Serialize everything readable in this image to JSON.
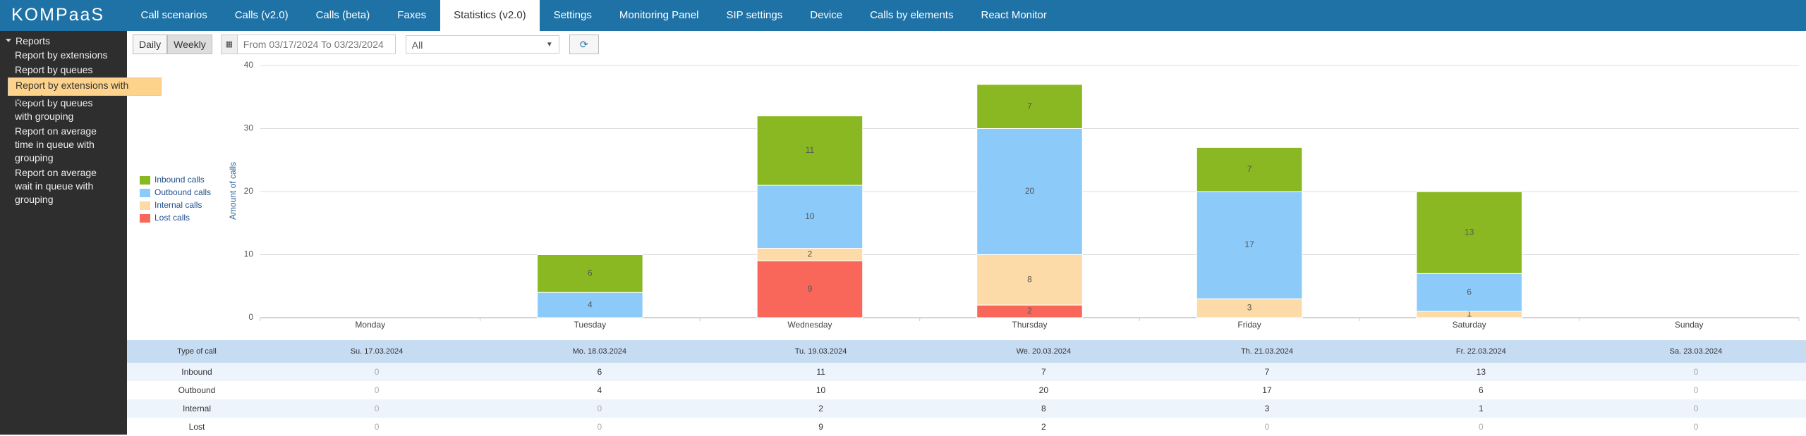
{
  "nav": {
    "logo": "KOMPaaS",
    "tabs": [
      "Call scenarios",
      "Calls (v2.0)",
      "Calls (beta)",
      "Faxes",
      "Statistics (v2.0)",
      "Settings",
      "Monitoring Panel",
      "SIP settings",
      "Device",
      "Calls by elements",
      "React Monitor"
    ]
  },
  "sidebar": {
    "heading": "Reports",
    "items": [
      "Report by extensions",
      "Report by queues",
      "Report by extensions with grouping",
      "Report by queues with grouping",
      "Report on average time in queue with grouping",
      "Report on average wait in queue with grouping"
    ]
  },
  "toolbar": {
    "daily": "Daily",
    "weekly": "Weekly",
    "date_range": "From 03/17/2024 To 03/23/2024",
    "filter": "All"
  },
  "chart_data": {
    "type": "stacked_bar",
    "y_label": "Amount of calls",
    "categories": [
      "Monday",
      "Tuesday",
      "Wednesday",
      "Thursday",
      "Friday",
      "Saturday",
      "Sunday"
    ],
    "series": [
      {
        "name": "Inbound calls",
        "color": "#8ab823",
        "values": [
          0,
          6,
          11,
          7,
          7,
          13,
          0
        ]
      },
      {
        "name": "Outbound calls",
        "color": "#8ccafa",
        "values": [
          0,
          4,
          10,
          20,
          17,
          6,
          0
        ]
      },
      {
        "name": "Internal calls",
        "color": "#fcdba8",
        "values": [
          0,
          0,
          2,
          8,
          3,
          1,
          0
        ]
      },
      {
        "name": "Lost calls",
        "color": "#f9665a",
        "values": [
          0,
          0,
          9,
          2,
          0,
          0,
          0
        ]
      }
    ],
    "ylim": [
      0,
      40
    ],
    "yticks": [
      0,
      10,
      20,
      30,
      40
    ],
    "grid": true,
    "legend": "left"
  },
  "table": {
    "header": "Type of call",
    "columns": [
      "Su. 17.03.2024",
      "Mo. 18.03.2024",
      "Tu. 19.03.2024",
      "We. 20.03.2024",
      "Th. 21.03.2024",
      "Fr. 22.03.2024",
      "Sa. 23.03.2024"
    ],
    "rows": [
      "Inbound",
      "Outbound",
      "Internal",
      "Lost"
    ]
  }
}
